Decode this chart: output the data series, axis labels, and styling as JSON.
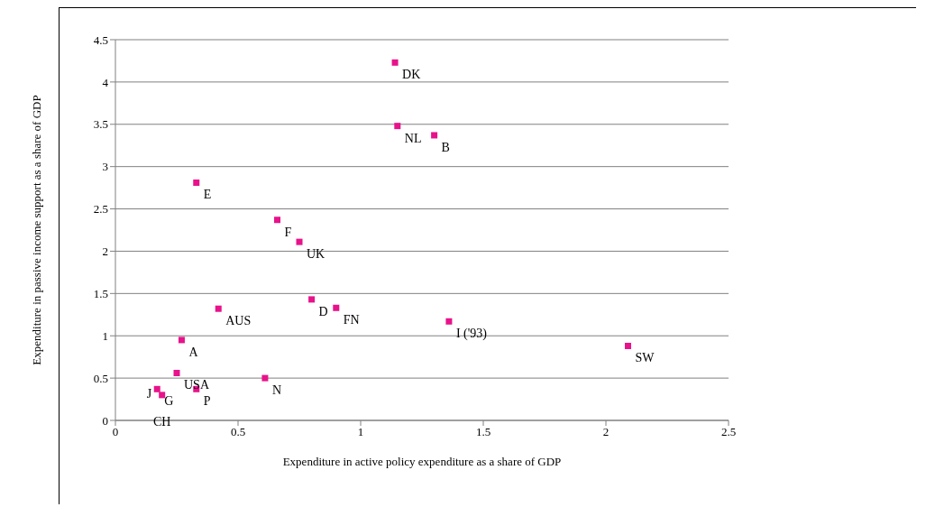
{
  "chart_data": {
    "type": "scatter",
    "xlabel": "Expenditure in active policy expenditure as a share of GDP",
    "ylabel": "Expenditure in passive income support as a share of GDP",
    "x": [
      1.14,
      1.15,
      1.3,
      0.33,
      0.66,
      0.75,
      0.42,
      0.8,
      0.9,
      1.36,
      2.09,
      0.27,
      0.25,
      0.61,
      0.17,
      0.19,
      0.33
    ],
    "series": [
      {
        "color": "#e8128a",
        "values": [
          4.23,
          3.48,
          3.37,
          2.81,
          2.37,
          2.11,
          1.32,
          1.43,
          1.33,
          1.17,
          0.88,
          0.95,
          0.56,
          0.5,
          0.37,
          0.3,
          0.37
        ]
      }
    ],
    "xlim": [
      0,
      2.5
    ],
    "xticks": [
      0,
      0.5,
      1,
      1.5,
      2,
      2.5
    ],
    "ylim": [
      0,
      4.5
    ],
    "yticks": [
      0,
      0.5,
      1,
      1.5,
      2,
      2.5,
      3,
      3.5,
      4,
      4.5
    ],
    "grid": "y",
    "marker": "square",
    "legend": false,
    "annotations": [
      {
        "text": "DK",
        "x": 1.14,
        "y": 4.23
      },
      {
        "text": "NL",
        "x": 1.15,
        "y": 3.48
      },
      {
        "text": "B",
        "x": 1.3,
        "y": 3.37
      },
      {
        "text": "E",
        "x": 0.33,
        "y": 2.81
      },
      {
        "text": "F",
        "x": 0.66,
        "y": 2.37
      },
      {
        "text": "UK",
        "x": 0.75,
        "y": 2.11
      },
      {
        "text": "AUS",
        "x": 0.42,
        "y": 1.32
      },
      {
        "text": "D",
        "x": 0.8,
        "y": 1.43
      },
      {
        "text": "FN",
        "x": 0.9,
        "y": 1.33
      },
      {
        "text": "I ('93)",
        "x": 1.36,
        "y": 1.17
      },
      {
        "text": "SW",
        "x": 2.09,
        "y": 0.88
      },
      {
        "text": "A",
        "x": 0.27,
        "y": 0.95
      },
      {
        "text": "USA",
        "x": 0.25,
        "y": 0.56
      },
      {
        "text": "N",
        "x": 0.61,
        "y": 0.5
      },
      {
        "text": "G",
        "x": 0.17,
        "y": 0.37
      },
      {
        "text": "J",
        "x": 0.17,
        "y": 0.37
      },
      {
        "text": "CH",
        "x": 0.19,
        "y": 0.3
      },
      {
        "text": "P",
        "x": 0.33,
        "y": 0.37
      }
    ]
  }
}
